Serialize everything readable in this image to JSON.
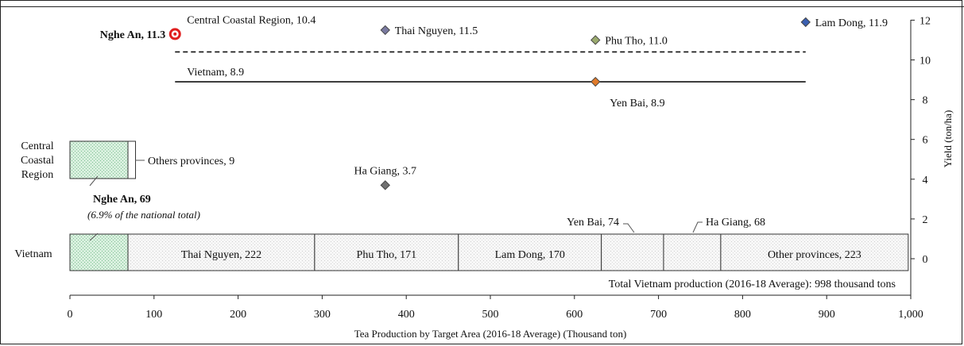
{
  "chart_data": {
    "type": "bar",
    "xlabel": "Tea Production by Target Area (2016-18 Average) (Thousand ton)",
    "ylabel": "Yield (ton/ha)",
    "xlim": [
      0,
      1000
    ],
    "ylim": [
      -1.8,
      12
    ],
    "x_ticks": [
      "0",
      "100",
      "200",
      "300",
      "400",
      "500",
      "600",
      "700",
      "800",
      "900",
      "1,000"
    ],
    "y_ticks": [
      "0",
      "2",
      "4",
      "6",
      "8",
      "10",
      "12"
    ],
    "row_labels": {
      "vietnam": "Vietnam",
      "central": [
        "Central",
        "Coastal",
        "Region"
      ]
    },
    "vietnam_bar": [
      {
        "name": "Nghe An",
        "value": 69,
        "label": "",
        "fill": "#d2ecd9"
      },
      {
        "name": "Thai Nguyen",
        "value": 222,
        "label": "Thai Nguyen, 222",
        "fill": "#f3f3f3"
      },
      {
        "name": "Phu Tho",
        "value": 171,
        "label": "Phu Tho, 171",
        "fill": "#f3f3f3"
      },
      {
        "name": "Lam Dong",
        "value": 170,
        "label": "Lam Dong, 170",
        "fill": "#f3f3f3"
      },
      {
        "name": "Yen Bai",
        "value": 74,
        "label": "",
        "fill": "#f3f3f3"
      },
      {
        "name": "Ha Giang",
        "value": 68,
        "label": "",
        "fill": "#f3f3f3"
      },
      {
        "name": "Other provinces",
        "value": 223,
        "label": "Other provinces, 223",
        "fill": "#f3f3f3"
      }
    ],
    "central_bar": [
      {
        "name": "Nghe An",
        "value": 69,
        "fill": "#d2ecd9"
      },
      {
        "name": "Others provinces",
        "value": 9,
        "fill": "#ffffff"
      }
    ],
    "callouts": {
      "yen_bai": "Yen Bai, 74",
      "ha_giang": "Ha Giang, 68",
      "others_provinces": "Others provinces, 9",
      "nghe_an": "Nghe An, 69",
      "nghe_an_share": "(6.9% of the national total)",
      "total": "Total Vietnam production (2016-18 Average): 998 thousand tons"
    },
    "reference_lines": [
      {
        "name": "Central Coastal Region",
        "y": 10.4,
        "label": "Central Coastal Region, 10.4",
        "style": "dashed",
        "x_range": [
          125,
          875
        ]
      },
      {
        "name": "Vietnam",
        "y": 8.9,
        "label": "Vietnam, 8.9",
        "style": "solid",
        "x_range": [
          125,
          875
        ]
      }
    ],
    "points": [
      {
        "name": "Nghe An",
        "x": 125,
        "y": 11.3,
        "label": "Nghe An, 11.3",
        "color": "#e02020",
        "marker": "circle"
      },
      {
        "name": "Thai Nguyen",
        "x": 375,
        "y": 11.5,
        "label": "Thai Nguyen, 11.5",
        "color": "#7a7aa0",
        "marker": "diamond"
      },
      {
        "name": "Phu Tho",
        "x": 625,
        "y": 11.0,
        "label": "Phu Tho, 11.0",
        "color": "#9aaa6e",
        "marker": "diamond"
      },
      {
        "name": "Yen Bai",
        "x": 625,
        "y": 8.9,
        "label": "Yen Bai, 8.9",
        "color": "#e07a2a",
        "marker": "diamond"
      },
      {
        "name": "Ha Giang",
        "x": 375,
        "y": 3.7,
        "label": "Ha Giang, 3.7",
        "color": "#707070",
        "marker": "diamond"
      },
      {
        "name": "Lam Dong",
        "x": 875,
        "y": 11.9,
        "label": "Lam Dong, 11.9",
        "color": "#3a5fb0",
        "marker": "diamond"
      }
    ]
  }
}
